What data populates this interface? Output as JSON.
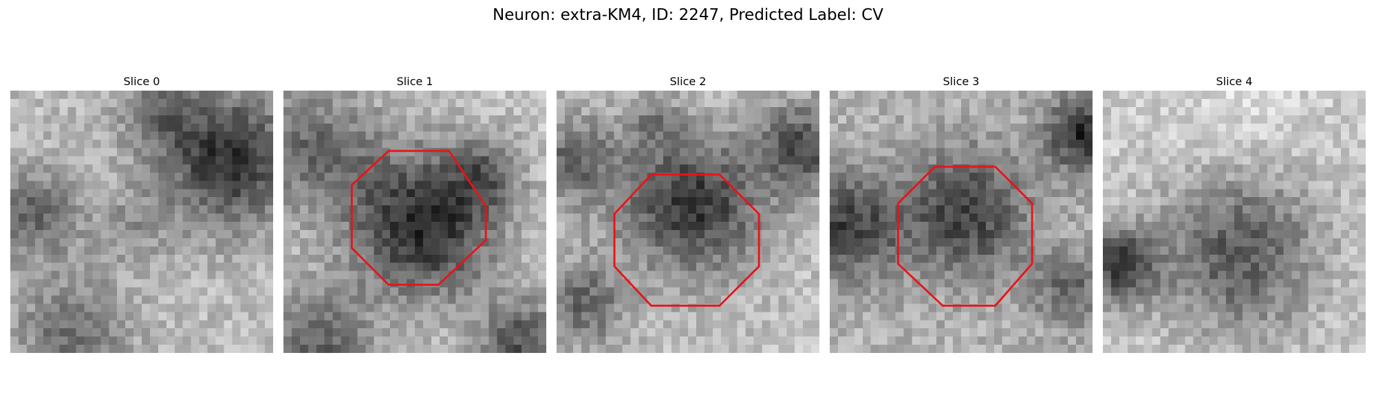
{
  "figure": {
    "title": "Neuron: extra-KM4, ID: 2247, Predicted Label: CV",
    "outline_color": "#e8131a"
  },
  "slices": [
    {
      "title": "Slice 0",
      "has_outline": false
    },
    {
      "title": "Slice 1",
      "has_outline": true
    },
    {
      "title": "Slice 2",
      "has_outline": true
    },
    {
      "title": "Slice 3",
      "has_outline": true
    },
    {
      "title": "Slice 4",
      "has_outline": false
    }
  ]
}
